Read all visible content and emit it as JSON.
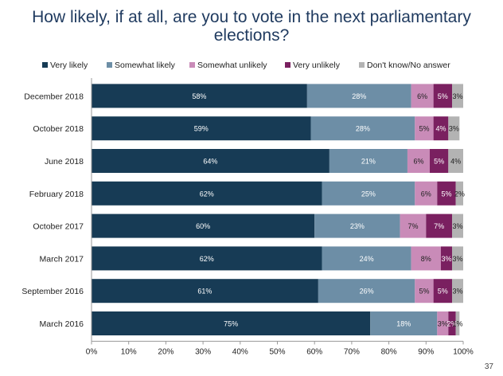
{
  "page_number": "37",
  "chart_data": {
    "type": "bar",
    "orientation": "horizontal",
    "stacked": true,
    "title_lines": [
      "How likely, if at all, are you to vote in the next parliamentary",
      "elections?"
    ],
    "categories": [
      "December 2018",
      "October 2018",
      "June 2018",
      "February 2018",
      "October 2017",
      "March 2017",
      "September 2016",
      "March 2016"
    ],
    "series": [
      {
        "name": "Very likely",
        "color": "#173b55",
        "values": [
          58,
          59,
          64,
          62,
          60,
          62,
          61,
          75
        ],
        "labels": [
          "58%",
          "59%",
          "64%",
          "62%",
          "60%",
          "62%",
          "61%",
          "75%"
        ]
      },
      {
        "name": "Somewhat likely",
        "color": "#6d8ea6",
        "values": [
          28,
          28,
          21,
          25,
          23,
          24,
          26,
          18
        ],
        "labels": [
          "28%",
          "28%",
          "21%",
          "25%",
          "23%",
          "24%",
          "26%",
          "18%"
        ]
      },
      {
        "name": "Somewhat unlikely",
        "color": "#c98bb8",
        "values": [
          6,
          5,
          6,
          6,
          7,
          8,
          5,
          3
        ],
        "labels": [
          "6%",
          "5%",
          "6%",
          "6%",
          "7%",
          "8%",
          "5%",
          "3%"
        ]
      },
      {
        "name": "Very unlikely",
        "color": "#7a2060",
        "values": [
          5,
          4,
          5,
          5,
          7,
          3,
          5,
          2
        ],
        "labels": [
          "5%",
          "4%",
          "5%",
          "5%",
          "7%",
          "3%",
          "5%",
          "2%"
        ]
      },
      {
        "name": "Don't know/No answer",
        "color": "#b3b3b3",
        "values": [
          3,
          3,
          4,
          2,
          3,
          3,
          3,
          1
        ],
        "labels": [
          "3%",
          "3%",
          "4%",
          "2%",
          "3%",
          "3%",
          "3%",
          "1%"
        ]
      }
    ],
    "x_ticks": [
      "0%",
      "10%",
      "20%",
      "30%",
      "40%",
      "50%",
      "60%",
      "70%",
      "80%",
      "90%",
      "100%"
    ],
    "xlim": [
      0,
      100
    ],
    "grid": false,
    "legend_position": "top"
  }
}
